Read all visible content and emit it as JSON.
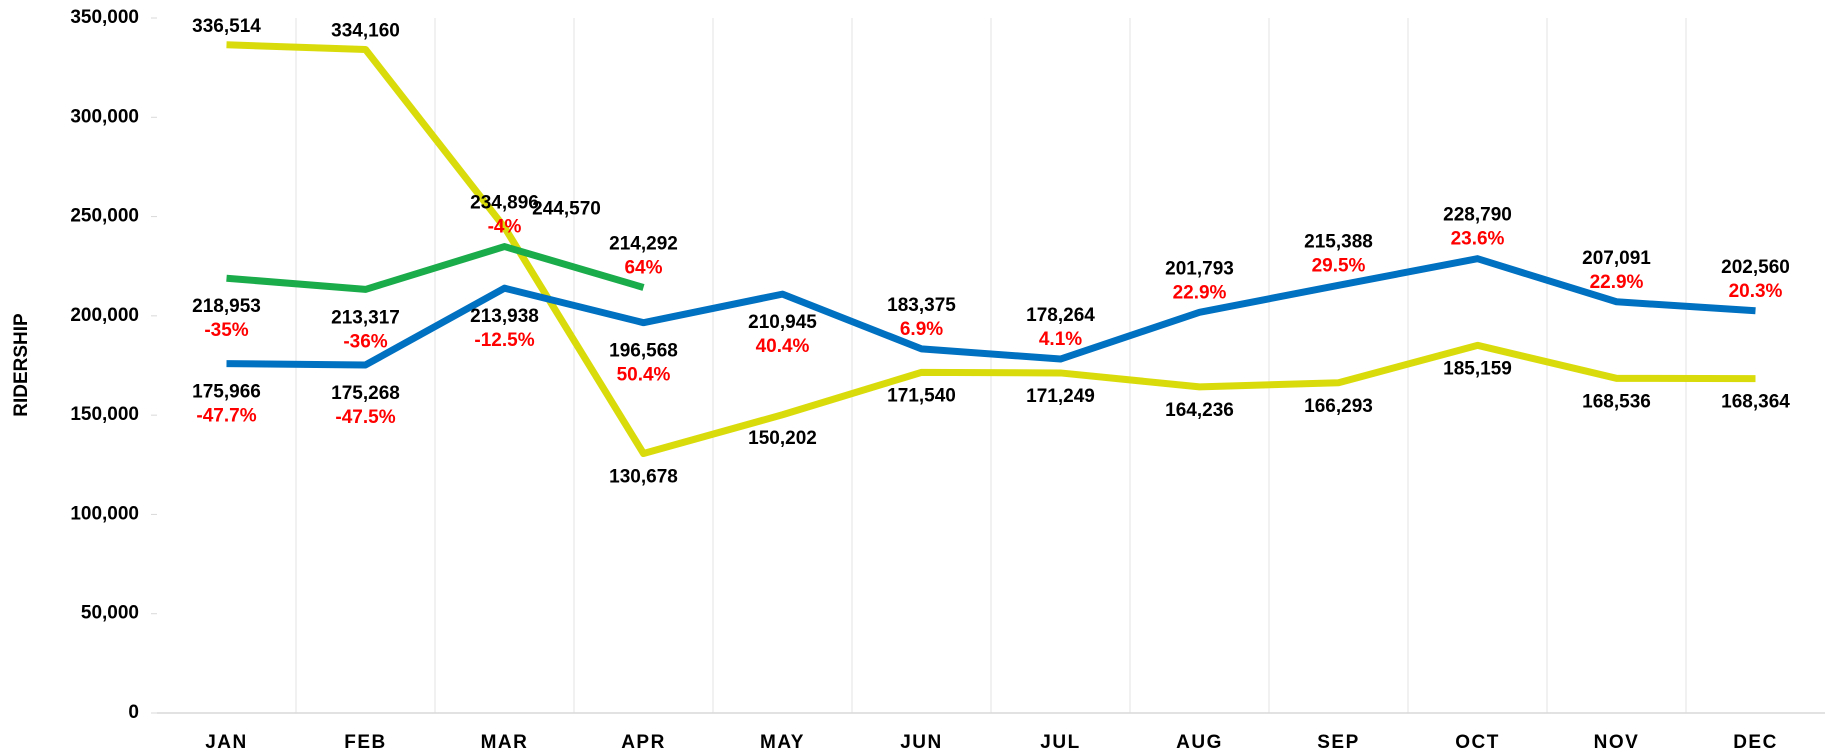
{
  "chart_data": {
    "type": "line",
    "y_label": "RIDERSHIP",
    "categories": [
      "JAN",
      "FEB",
      "MAR",
      "APR",
      "MAY",
      "JUN",
      "JUL",
      "AUG",
      "SEP",
      "OCT",
      "NOV",
      "DEC"
    ],
    "series": [
      {
        "color": "#d9dc0a",
        "values": [
          336514,
          334160,
          244570,
          130678,
          150202,
          171540,
          171249,
          164236,
          166293,
          185159,
          168536,
          168364
        ],
        "value_labels": [
          "336,514",
          "334,160",
          "244,570",
          "130,678",
          "150,202",
          "171,540",
          "171,249",
          "164,236",
          "166,293",
          "185,159",
          "168,536",
          "168,364"
        ]
      },
      {
        "color": "#0070c0",
        "values": [
          175966,
          175268,
          213938,
          196568,
          210945,
          183375,
          178264,
          201793,
          215388,
          228790,
          207091,
          202560
        ],
        "value_labels": [
          "175,966",
          "175,268",
          "213,938",
          "196,568",
          "210,945",
          "183,375",
          "178,264",
          "201,793",
          "215,388",
          "228,790",
          "207,091",
          "202,560"
        ],
        "pct_labels": [
          "-47.7%",
          "-47.5%",
          "-12.5%",
          "50.4%",
          "40.4%",
          "6.9%",
          "4.1%",
          "22.9%",
          "29.5%",
          "23.6%",
          "22.9%",
          "20.3%"
        ]
      },
      {
        "color": "#1aab4b",
        "values": [
          218953,
          213317,
          234896,
          214292,
          null,
          null,
          null,
          null,
          null,
          null,
          null,
          null
        ],
        "value_labels": [
          "218,953",
          "213,317",
          "234,896",
          "214,292",
          null,
          null,
          null,
          null,
          null,
          null,
          null,
          null
        ],
        "pct_labels": [
          "-35%",
          "-36%",
          "-4%",
          "64%",
          null,
          null,
          null,
          null,
          null,
          null,
          null,
          null
        ]
      }
    ],
    "pct_color": "#ff0000",
    "ylim": [
      0,
      350000
    ],
    "yticks": [
      0,
      {
        "value": 50000,
        "label": "50,000"
      },
      {
        "value": 100000,
        "label": "100,000"
      },
      {
        "value": 150000,
        "label": "150,000"
      },
      {
        "value": 200000,
        "label": "200,000"
      },
      {
        "value": 250000,
        "label": "250,000"
      },
      {
        "value": 300000,
        "label": "300,000"
      },
      {
        "value": 350000,
        "label": "350,000"
      }
    ]
  }
}
